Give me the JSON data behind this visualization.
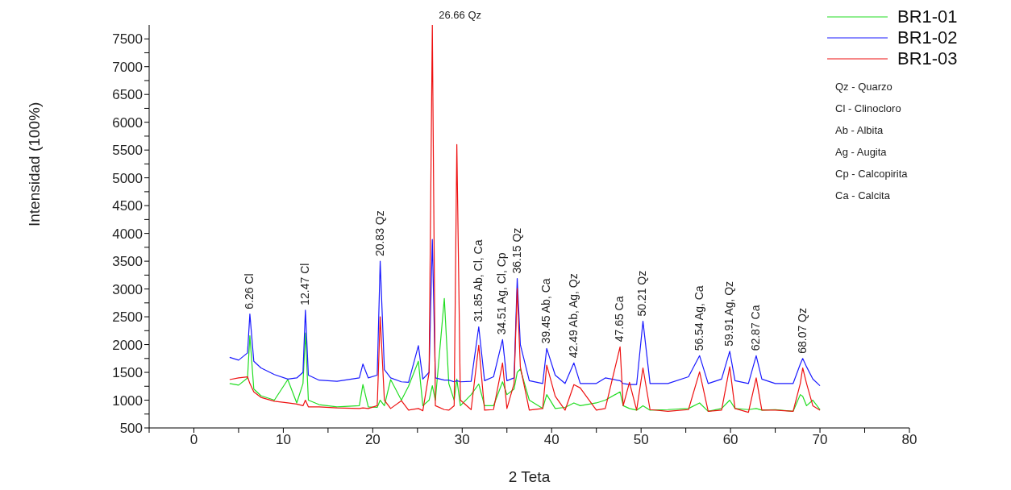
{
  "chart_data": {
    "type": "line",
    "xlabel": "2 Teta",
    "ylabel": "Intensidad (100%)",
    "xlim": [
      -5,
      80
    ],
    "xticks": [
      {
        "value": -5,
        "label": null
      },
      0,
      {
        "value": 5,
        "label": null
      },
      10,
      {
        "value": 15,
        "label": null
      },
      20,
      {
        "value": 25,
        "label": null
      },
      30,
      {
        "value": 35,
        "label": null
      },
      40,
      {
        "value": 45,
        "label": null
      },
      50,
      {
        "value": 55,
        "label": null
      },
      60,
      {
        "value": 65,
        "label": null
      },
      70,
      {
        "value": 75,
        "label": null
      },
      80
    ],
    "ylim": [
      500,
      7750
    ],
    "yticks": [
      500,
      {
        "value": 750,
        "label": null
      },
      1000,
      {
        "value": 1250,
        "label": null
      },
      1500,
      {
        "value": 1750,
        "label": null
      },
      2000,
      {
        "value": 2250,
        "label": null
      },
      2500,
      {
        "value": 2750,
        "label": null
      },
      3000,
      {
        "value": 3250,
        "label": null
      },
      3500,
      {
        "value": 3750,
        "label": null
      },
      4000,
      {
        "value": 4250,
        "label": null
      },
      4500,
      {
        "value": 4750,
        "label": null
      },
      5000,
      {
        "value": 5250,
        "label": null
      },
      5500,
      {
        "value": 5750,
        "label": null
      },
      6000,
      {
        "value": 6250,
        "label": null
      },
      6500,
      {
        "value": 6750,
        "label": null
      },
      7000,
      {
        "value": 7250,
        "label": null
      },
      7500
    ],
    "grid": false,
    "legend": "top right",
    "marker": "none",
    "line_style": "solid",
    "x": [
      4,
      5,
      6,
      6.26,
      6.7,
      7.5,
      9,
      10.5,
      11.5,
      12.2,
      12.47,
      12.8,
      14,
      16,
      18.5,
      18.9,
      19.5,
      20.5,
      20.83,
      21.3,
      22,
      23.2,
      24,
      25.1,
      25.6,
      26.3,
      26.66,
      27,
      28,
      28.5,
      29.1,
      29.4,
      29.8,
      31,
      31.85,
      32.5,
      33.5,
      34.51,
      35,
      35.8,
      36.15,
      36.5,
      37.5,
      39,
      39.45,
      40.4,
      41.5,
      42.49,
      43.2,
      45,
      46,
      47.65,
      48,
      48.7,
      49.5,
      50.21,
      51,
      53,
      55.3,
      56.54,
      57.5,
      59,
      59.91,
      60.5,
      62,
      62.87,
      63.5,
      65,
      67,
      67.8,
      68.07,
      68.5,
      69.2,
      70
    ],
    "series": [
      {
        "name": "BR1-01",
        "color": "#22dd22",
        "values": [
          1300,
          1270,
          1400,
          2160,
          1200,
          1080,
          1000,
          1370,
          950,
          1300,
          2210,
          1000,
          920,
          880,
          900,
          1280,
          880,
          870,
          1000,
          900,
          1370,
          1000,
          1250,
          1700,
          900,
          1000,
          1260,
          1000,
          2830,
          1300,
          1000,
          1380,
          900,
          1100,
          1290,
          900,
          900,
          1330,
          1100,
          1200,
          1500,
          1560,
          1000,
          850,
          1100,
          850,
          870,
          950,
          900,
          950,
          1000,
          1150,
          900,
          850,
          820,
          900,
          820,
          830,
          850,
          950,
          800,
          850,
          1000,
          850,
          830,
          850,
          820,
          830,
          800,
          1100,
          1070,
          900,
          1000,
          830
        ]
      },
      {
        "name": "BR1-02",
        "color": "#1a1aff",
        "values": [
          1770,
          1720,
          1850,
          2550,
          1700,
          1580,
          1460,
          1380,
          1400,
          1500,
          2620,
          1450,
          1360,
          1340,
          1400,
          1650,
          1400,
          1450,
          3500,
          1550,
          1400,
          1330,
          1320,
          1980,
          1380,
          1500,
          3890,
          1400,
          1360,
          1360,
          1330,
          1350,
          1330,
          1340,
          2320,
          1350,
          1420,
          2090,
          1350,
          1400,
          3190,
          2000,
          1350,
          1300,
          1930,
          1450,
          1300,
          1670,
          1300,
          1300,
          1400,
          1350,
          1300,
          1280,
          1280,
          2420,
          1300,
          1300,
          1420,
          1800,
          1300,
          1380,
          1880,
          1350,
          1300,
          1800,
          1380,
          1300,
          1300,
          1650,
          1750,
          1600,
          1380,
          1260
        ]
      },
      {
        "name": "BR1-03",
        "color": "#ee1111",
        "values": [
          1370,
          1400,
          1420,
          1300,
          1150,
          1050,
          980,
          950,
          930,
          900,
          1000,
          880,
          880,
          860,
          850,
          860,
          850,
          900,
          2500,
          1000,
          850,
          990,
          820,
          850,
          810,
          1500,
          7750,
          900,
          830,
          820,
          900,
          5600,
          1000,
          830,
          1990,
          820,
          830,
          1670,
          850,
          1300,
          3010,
          1600,
          820,
          850,
          1630,
          1070,
          820,
          1280,
          1220,
          820,
          850,
          1960,
          900,
          1320,
          820,
          1580,
          830,
          800,
          830,
          1510,
          800,
          820,
          1600,
          850,
          780,
          1400,
          820,
          820,
          800,
          1300,
          1580,
          1300,
          900,
          820
        ]
      }
    ],
    "annotations": [
      {
        "text": "6.26 Cl",
        "x": 6.26,
        "y": 2550
      },
      {
        "text": "12.47 Cl",
        "x": 12.47,
        "y": 2620
      },
      {
        "text": "20.83 Qz",
        "x": 20.83,
        "y": 3500
      },
      {
        "text": "26.66 Qz",
        "x": 26.66,
        "y": 7750
      },
      {
        "text": "31.85 Ab, Cl, Ca",
        "x": 31.85,
        "y": 2320
      },
      {
        "text": "34.51 Ag, Cl, Cp",
        "x": 34.51,
        "y": 2090
      },
      {
        "text": "36.15 Qz",
        "x": 36.15,
        "y": 3190
      },
      {
        "text": "39.45 Ab, Ca",
        "x": 39.45,
        "y": 1930
      },
      {
        "text": "42.49 Ab, Ag, Qz",
        "x": 42.49,
        "y": 1670
      },
      {
        "text": "47.65 Ca",
        "x": 47.65,
        "y": 1960
      },
      {
        "text": "50.21 Qz",
        "x": 50.21,
        "y": 2420
      },
      {
        "text": "56.54 Ag, Ca",
        "x": 56.54,
        "y": 1800
      },
      {
        "text": "59.91 Ag, Qz",
        "x": 59.91,
        "y": 1880
      },
      {
        "text": "62.87 Ca",
        "x": 62.87,
        "y": 1800
      },
      {
        "text": "68.07 Qz",
        "x": 68.07,
        "y": 1750
      },
      "Qz - Quarzo",
      "Cl - Clinocloro",
      "Ab - Albita",
      "Ag - Augita",
      "Cp - Calcopirita",
      "Ca - Calcita"
    ]
  }
}
